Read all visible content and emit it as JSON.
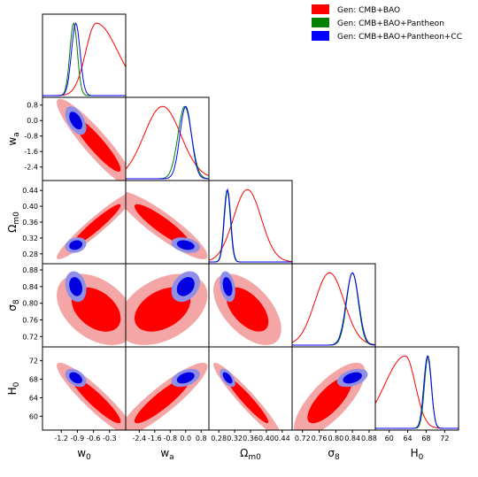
{
  "chart_data": {
    "type": "triangle-corner",
    "legend": [
      {
        "name": "Gen: CMB+BAO",
        "color": "#ff0000"
      },
      {
        "name": "Gen: CMB+BAO+Pantheon",
        "color": "#008000"
      },
      {
        "name": "Gen: CMB+BAO+Pantheon+CC",
        "color": "#0000ff"
      }
    ],
    "legend_position": "top-right",
    "parameters": [
      {
        "key": "w0",
        "label": "w",
        "sub": "0",
        "range": [
          -1.55,
          0.0
        ],
        "ticks": [
          "-1.2",
          "-0.9",
          "-0.6",
          "-0.3"
        ],
        "tick_values": [
          -1.2,
          -0.9,
          -0.6,
          -0.3
        ]
      },
      {
        "key": "wa",
        "label": "w",
        "sub": "a",
        "range": [
          -3.1,
          1.2
        ],
        "ticks": [
          "-2.4",
          "-1.6",
          "-0.8",
          "0.0",
          "0.8"
        ],
        "tick_values": [
          -2.4,
          -1.6,
          -0.8,
          0.0,
          0.8
        ],
        "y_ticks": [
          "0.8",
          "0.0",
          "-0.8",
          "-1.6",
          "-2.4"
        ]
      },
      {
        "key": "Om",
        "label": "Ω",
        "sub": "m0",
        "range": [
          0.255,
          0.465
        ],
        "ticks": [
          "0.28",
          "0.32",
          "0.36",
          "0.40",
          "0.44"
        ],
        "tick_values": [
          0.28,
          0.32,
          0.36,
          0.4,
          0.44
        ],
        "y_ticks": [
          "0.44",
          "0.40",
          "0.36",
          "0.32",
          "0.28"
        ]
      },
      {
        "key": "s8",
        "label": "σ",
        "sub": "8",
        "range": [
          0.695,
          0.895
        ],
        "ticks": [
          "0.72",
          "0.76",
          "0.80",
          "0.84",
          "0.88"
        ],
        "tick_values": [
          0.72,
          0.76,
          0.8,
          0.84,
          0.88
        ],
        "y_ticks": [
          "0.88",
          "0.84",
          "0.80",
          "0.76",
          "0.72"
        ]
      },
      {
        "key": "H0",
        "label": "H",
        "sub": "0",
        "range": [
          57.0,
          75.0
        ],
        "ticks": [
          "60",
          "64",
          "68",
          "72"
        ],
        "tick_values": [
          60,
          64,
          68,
          72
        ],
        "y_ticks": [
          "72",
          "68",
          "64",
          "60"
        ]
      }
    ],
    "series": [
      {
        "name": "Gen: CMB+BAO",
        "color": "#ff0000",
        "means": {
          "w0": -0.55,
          "wa": -1.2,
          "Om": 0.352,
          "s8": 0.785,
          "H0": 63.5
        },
        "sigmas": {
          "w0": 0.3,
          "wa": 0.95,
          "Om": 0.035,
          "s8": 0.035,
          "H0": 3.3
        }
      },
      {
        "name": "Gen: CMB+BAO+Pantheon",
        "color": "#008000",
        "means": {
          "w0": -0.97,
          "wa": -0.05,
          "Om": 0.301,
          "s8": 0.84,
          "H0": 68.4
        },
        "sigmas": {
          "w0": 0.07,
          "wa": 0.35,
          "Om": 0.008,
          "s8": 0.014,
          "H0": 0.75
        }
      },
      {
        "name": "Gen: CMB+BAO+Pantheon+CC",
        "color": "#0000ff",
        "means": {
          "w0": -0.93,
          "wa": 0.0,
          "Om": 0.302,
          "s8": 0.84,
          "H0": 68.3
        },
        "sigmas": {
          "w0": 0.08,
          "wa": 0.3,
          "Om": 0.008,
          "s8": 0.015,
          "H0": 0.8
        }
      }
    ],
    "correlations": {
      "w0|wa": -0.92,
      "w0|Om": 0.95,
      "w0|s8": -0.4,
      "w0|H0": -0.92,
      "wa|Om": -0.9,
      "wa|s8": 0.4,
      "wa|H0": 0.9,
      "Om|s8": -0.55,
      "Om|H0": -0.95,
      "s8|H0": 0.75
    },
    "tight_correlations": {
      "w0|wa": -0.5,
      "w0|Om": 0.2,
      "w0|s8": -0.2,
      "w0|H0": -0.4,
      "wa|Om": -0.3,
      "wa|s8": 0.3,
      "wa|H0": 0.4,
      "Om|s8": -0.3,
      "Om|H0": -0.6,
      "s8|H0": 0.4
    }
  }
}
